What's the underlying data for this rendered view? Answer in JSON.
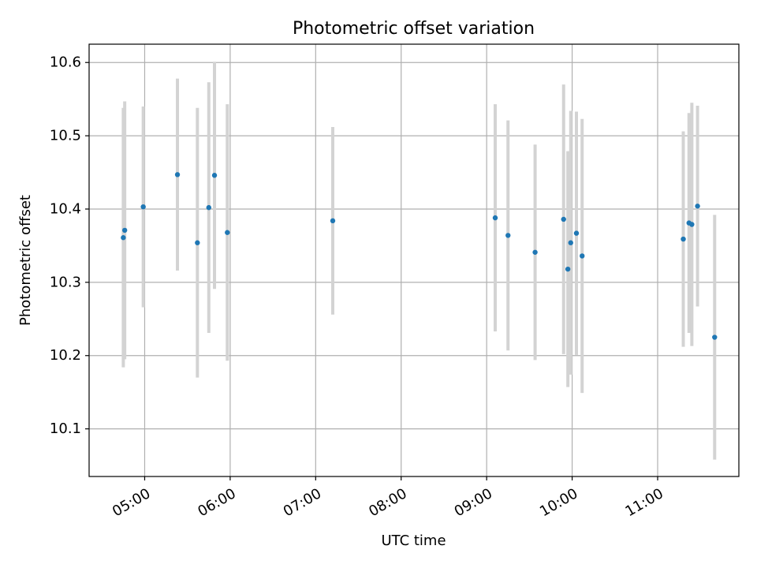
{
  "chart_data": {
    "type": "scatter",
    "title": "Photometric offset variation",
    "xlabel": "UTC time",
    "ylabel": "Photometric offset",
    "x_ticks": [
      "05:00",
      "06:00",
      "07:00",
      "08:00",
      "09:00",
      "10:00",
      "11:00"
    ],
    "x_tick_hours": [
      5,
      6,
      7,
      8,
      9,
      10,
      11
    ],
    "xlim_hours": [
      4.35,
      11.95
    ],
    "y_ticks": [
      "10.1",
      "10.2",
      "10.3",
      "10.4",
      "10.5",
      "10.6"
    ],
    "ylim": [
      10.035,
      10.625
    ],
    "grid": true,
    "marker_color": "#1f77b4",
    "errorbar_color": "#d3d3d3",
    "points": [
      {
        "time": "04:45",
        "y": 10.361,
        "err": 0.177
      },
      {
        "time": "04:46",
        "y": 10.371,
        "err": 0.176
      },
      {
        "time": "04:59",
        "y": 10.403,
        "err": 0.137
      },
      {
        "time": "05:23",
        "y": 10.447,
        "err": 0.131
      },
      {
        "time": "05:37",
        "y": 10.354,
        "err": 0.184
      },
      {
        "time": "05:45",
        "y": 10.402,
        "err": 0.171
      },
      {
        "time": "05:49",
        "y": 10.446,
        "err": 0.155
      },
      {
        "time": "05:58",
        "y": 10.368,
        "err": 0.175
      },
      {
        "time": "07:12",
        "y": 10.384,
        "err": 0.128
      },
      {
        "time": "09:06",
        "y": 10.388,
        "err": 0.155
      },
      {
        "time": "09:15",
        "y": 10.364,
        "err": 0.157
      },
      {
        "time": "09:34",
        "y": 10.341,
        "err": 0.147
      },
      {
        "time": "09:54",
        "y": 10.386,
        "err": 0.184
      },
      {
        "time": "09:57",
        "y": 10.318,
        "err": 0.161
      },
      {
        "time": "09:59",
        "y": 10.354,
        "err": 0.18
      },
      {
        "time": "10:03",
        "y": 10.367,
        "err": 0.166
      },
      {
        "time": "10:07",
        "y": 10.336,
        "err": 0.187
      },
      {
        "time": "11:18",
        "y": 10.359,
        "err": 0.147
      },
      {
        "time": "11:22",
        "y": 10.381,
        "err": 0.15
      },
      {
        "time": "11:24",
        "y": 10.379,
        "err": 0.166
      },
      {
        "time": "11:28",
        "y": 10.404,
        "err": 0.137
      },
      {
        "time": "11:40",
        "y": 10.225,
        "err": 0.167
      }
    ]
  }
}
